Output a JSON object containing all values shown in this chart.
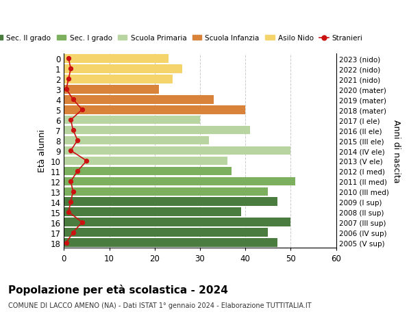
{
  "ages": [
    18,
    17,
    16,
    15,
    14,
    13,
    12,
    11,
    10,
    9,
    8,
    7,
    6,
    5,
    4,
    3,
    2,
    1,
    0
  ],
  "years_labels": [
    "2005 (V sup)",
    "2006 (IV sup)",
    "2007 (III sup)",
    "2008 (II sup)",
    "2009 (I sup)",
    "2010 (III med)",
    "2011 (II med)",
    "2012 (I med)",
    "2013 (V ele)",
    "2014 (IV ele)",
    "2015 (III ele)",
    "2016 (II ele)",
    "2017 (I ele)",
    "2018 (mater)",
    "2019 (mater)",
    "2020 (mater)",
    "2021 (nido)",
    "2022 (nido)",
    "2023 (nido)"
  ],
  "bar_values": [
    47,
    45,
    50,
    39,
    47,
    45,
    51,
    37,
    36,
    50,
    32,
    41,
    30,
    40,
    33,
    21,
    24,
    26,
    23
  ],
  "bar_colors": [
    "#4a7c3f",
    "#4a7c3f",
    "#4a7c3f",
    "#4a7c3f",
    "#4a7c3f",
    "#7db05e",
    "#7db05e",
    "#7db05e",
    "#b8d4a0",
    "#b8d4a0",
    "#b8d4a0",
    "#b8d4a0",
    "#b8d4a0",
    "#d9823a",
    "#d9823a",
    "#d9823a",
    "#f5d56b",
    "#f5d56b",
    "#f5d56b"
  ],
  "stranieri_values": [
    0.5,
    2,
    4,
    1,
    1.5,
    2,
    1.5,
    3,
    5,
    1.5,
    3,
    2,
    1.5,
    4,
    2,
    0.5,
    1,
    1.5,
    1
  ],
  "stranieri_color": "#cc1111",
  "legend_items": [
    {
      "label": "Sec. II grado",
      "color": "#4a7c3f"
    },
    {
      "label": "Sec. I grado",
      "color": "#7db05e"
    },
    {
      "label": "Scuola Primaria",
      "color": "#b8d4a0"
    },
    {
      "label": "Scuola Infanzia",
      "color": "#d9823a"
    },
    {
      "label": "Asilo Nido",
      "color": "#f5d56b"
    },
    {
      "label": "Stranieri",
      "color": "#cc1111"
    }
  ],
  "ylabel_left": "Età alunni",
  "ylabel_right": "Anni di nascita",
  "xlim": [
    0,
    60
  ],
  "xticks": [
    0,
    10,
    20,
    30,
    40,
    50,
    60
  ],
  "title": "Popolazione per età scolastica - 2024",
  "subtitle": "COMUNE DI LACCO AMENO (NA) - Dati ISTAT 1° gennaio 2024 - Elaborazione TUTTITALIA.IT"
}
